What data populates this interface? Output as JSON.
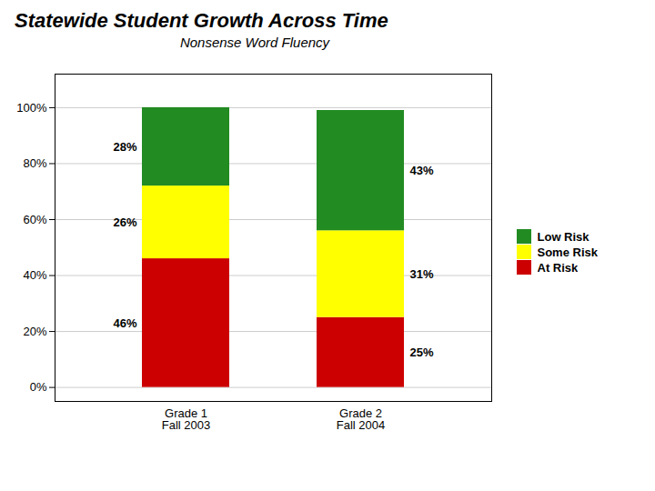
{
  "chart_data": {
    "type": "bar",
    "title": "Statewide Student Growth Across Time",
    "subtitle": "Nonsense Word Fluency",
    "categories": [
      "Grade 1",
      "Grade 2"
    ],
    "annotations": [
      {
        "text": "Fall 2003",
        "category": "Grade 1"
      },
      {
        "text": "Fall 2004",
        "category": "Grade 2"
      }
    ],
    "stacked": true,
    "data_labels": true,
    "series": [
      {
        "name": "At Risk",
        "color": "#cc0000",
        "values": [
          46,
          25
        ],
        "value_labels": [
          "46%",
          "25%"
        ]
      },
      {
        "name": "Some Risk",
        "color": "#ffff00",
        "values": [
          26,
          31
        ],
        "value_labels": [
          "26%",
          "31%"
        ]
      },
      {
        "name": "Low Risk",
        "color": "#228b22",
        "values": [
          28,
          43
        ],
        "value_labels": [
          "28%",
          "43%"
        ]
      }
    ],
    "ylim": [
      -5,
      112
    ],
    "yticks": [
      {
        "value": 0,
        "label": "0%"
      },
      {
        "value": 20,
        "label": "20%"
      },
      {
        "value": 40,
        "label": "40%"
      },
      {
        "value": 60,
        "label": "60%"
      },
      {
        "value": 80,
        "label": "80%"
      },
      {
        "value": 100,
        "label": "100%"
      }
    ],
    "grid": true,
    "legend": "right"
  }
}
